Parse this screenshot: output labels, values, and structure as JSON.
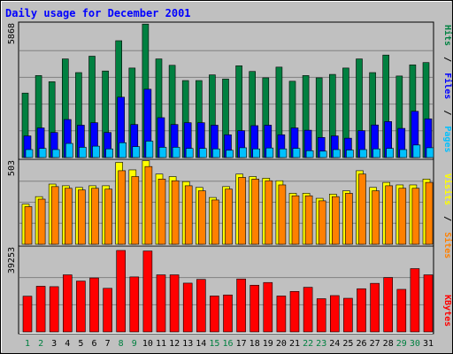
{
  "title": "Daily usage for December 2001",
  "colors": {
    "background": "#c0c0c0",
    "title": "#0000ff",
    "hits": "#008040",
    "files": "#0000ff",
    "pages": "#00c0ff",
    "visits": "#ffff00",
    "sites": "#ff8000",
    "kbytes": "#ff0000",
    "weekend_day_label": "#008040",
    "weekday_label": "#000000",
    "gridline": "#808080"
  },
  "legend": {
    "top": [
      {
        "text": "Hits",
        "color": "#008040"
      },
      {
        "text": "Files",
        "color": "#0000ff"
      },
      {
        "text": "Pages",
        "color": "#00c0ff"
      }
    ],
    "middle": [
      {
        "text": "Visits",
        "color": "#ffff00"
      },
      {
        "text": "Sites",
        "color": "#ff8000"
      }
    ],
    "bottom": [
      {
        "text": "KBytes",
        "color": "#ff0000"
      }
    ],
    "separator": "/"
  },
  "chart_data": [
    {
      "type": "bar",
      "panel": "hits-files-pages",
      "ymax_label": "5868",
      "ylim": [
        0,
        5868
      ],
      "grid": true,
      "categories": [
        "1",
        "2",
        "3",
        "4",
        "5",
        "6",
        "7",
        "8",
        "9",
        "10",
        "11",
        "12",
        "13",
        "14",
        "15",
        "16",
        "17",
        "18",
        "19",
        "20",
        "21",
        "22",
        "23",
        "24",
        "25",
        "26",
        "27",
        "28",
        "29",
        "30",
        "31"
      ],
      "weekend_days": [
        "1",
        "2",
        "8",
        "9",
        "15",
        "16",
        "22",
        "23",
        "29",
        "30"
      ],
      "series": [
        {
          "name": "Hits",
          "color": "#008040",
          "values": [
            2830,
            3600,
            3330,
            4330,
            3730,
            4450,
            3800,
            5130,
            3930,
            5860,
            4330,
            4050,
            3380,
            3380,
            3630,
            3450,
            4030,
            3780,
            3500,
            3970,
            3350,
            3600,
            3500,
            3650,
            3930,
            4330,
            3730,
            4500,
            3580,
            4070,
            4170
          ]
        },
        {
          "name": "Files",
          "color": "#0000ff",
          "values": [
            950,
            1300,
            1100,
            1670,
            1420,
            1530,
            1100,
            2650,
            1450,
            3000,
            1750,
            1450,
            1530,
            1530,
            1420,
            1000,
            1180,
            1400,
            1420,
            1000,
            1300,
            1200,
            880,
            950,
            850,
            1180,
            1430,
            1580,
            1280,
            2030,
            1700
          ]
        },
        {
          "name": "Pages",
          "color": "#00c0ff",
          "values": [
            350,
            400,
            350,
            620,
            450,
            500,
            380,
            650,
            480,
            720,
            450,
            450,
            400,
            400,
            380,
            320,
            430,
            380,
            420,
            380,
            400,
            300,
            280,
            350,
            330,
            350,
            380,
            400,
            350,
            550,
            430
          ]
        }
      ]
    },
    {
      "type": "bar",
      "panel": "visits-sites",
      "ymax_label": "503",
      "ylim": [
        0,
        503
      ],
      "grid": true,
      "categories": [
        "1",
        "2",
        "3",
        "4",
        "5",
        "6",
        "7",
        "8",
        "9",
        "10",
        "11",
        "12",
        "13",
        "14",
        "15",
        "16",
        "17",
        "18",
        "19",
        "20",
        "21",
        "22",
        "23",
        "24",
        "25",
        "26",
        "27",
        "28",
        "29",
        "30",
        "31"
      ],
      "series": [
        {
          "name": "Visits",
          "color": "#ffff00",
          "values": [
            240,
            285,
            360,
            350,
            340,
            350,
            350,
            490,
            445,
            500,
            420,
            405,
            375,
            340,
            280,
            345,
            420,
            405,
            395,
            380,
            305,
            305,
            275,
            300,
            320,
            440,
            340,
            370,
            355,
            355,
            390
          ]
        },
        {
          "name": "Sites",
          "color": "#ff8000",
          "values": [
            225,
            270,
            345,
            335,
            325,
            335,
            330,
            440,
            405,
            465,
            390,
            380,
            350,
            320,
            265,
            330,
            400,
            390,
            380,
            355,
            290,
            290,
            260,
            285,
            305,
            420,
            320,
            350,
            335,
            335,
            370
          ]
        }
      ]
    },
    {
      "type": "bar",
      "panel": "kbytes",
      "ymax_label": "39253",
      "ylim": [
        0,
        39253
      ],
      "grid": true,
      "categories": [
        "1",
        "2",
        "3",
        "4",
        "5",
        "6",
        "7",
        "8",
        "9",
        "10",
        "11",
        "12",
        "13",
        "14",
        "15",
        "16",
        "17",
        "18",
        "19",
        "20",
        "21",
        "22",
        "23",
        "24",
        "25",
        "26",
        "27",
        "28",
        "29",
        "30",
        "31"
      ],
      "series": [
        {
          "name": "KBytes",
          "color": "#ff0000",
          "values": [
            17200,
            22000,
            21800,
            27500,
            24500,
            26000,
            21000,
            39253,
            26500,
            39000,
            27500,
            27500,
            23500,
            25300,
            17300,
            17800,
            25500,
            22500,
            23800,
            17300,
            19500,
            21500,
            16000,
            17500,
            16200,
            20800,
            23400,
            26200,
            20500,
            30500,
            27500
          ]
        }
      ]
    }
  ]
}
